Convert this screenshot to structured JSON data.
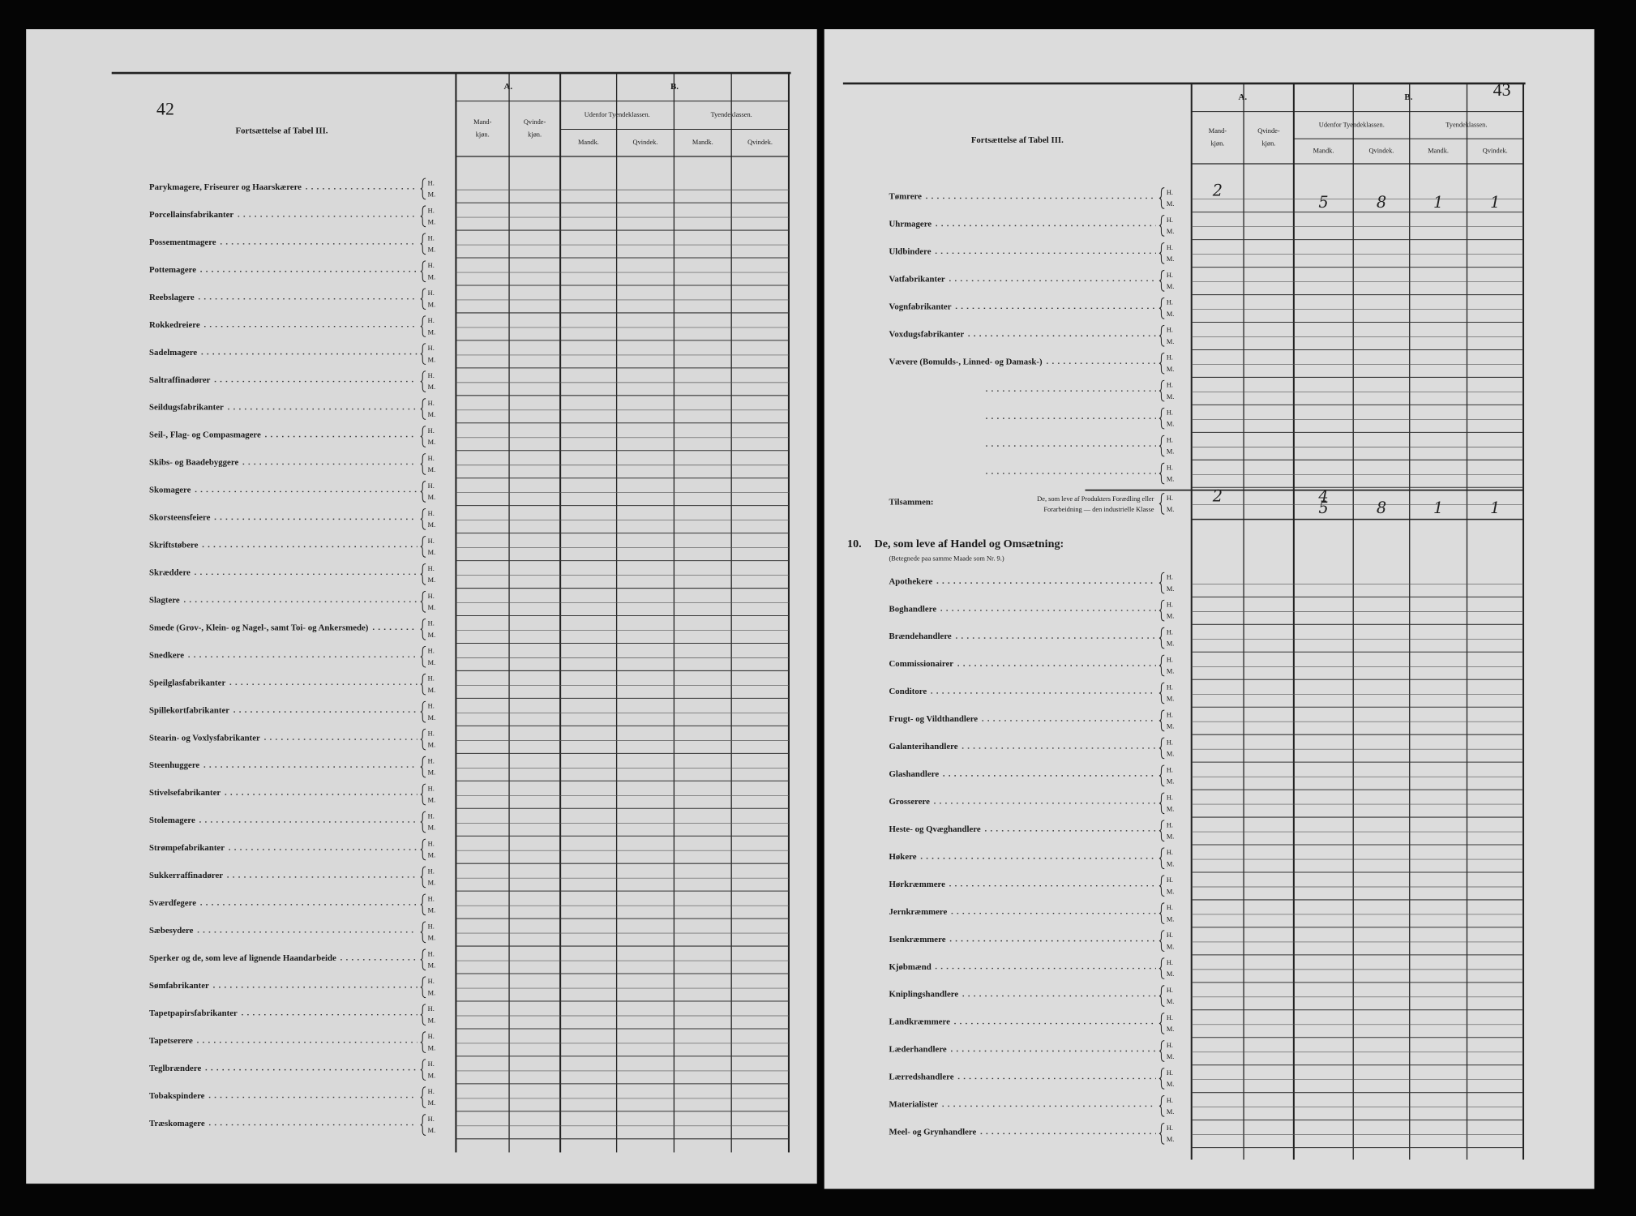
{
  "sex_labels": [
    "H.",
    "M."
  ],
  "header": {
    "A": "A.",
    "B": "B.",
    "male": [
      "Mand-",
      "kjøn."
    ],
    "female": [
      "Qvinde-",
      "kjøn."
    ],
    "outside": "Udenfor Tyendeklassen.",
    "servants": "Tyendeklassen.",
    "male_short": "Mandk.",
    "female_short": "Qvindek."
  },
  "left_page": {
    "page_number": "42",
    "title": "Fortsættelse af Tabel III.",
    "rows": [
      "Parykmagere, Friseurer og Haarskærere",
      "Porcellainsfabrikanter",
      "Possementmagere",
      "Pottemagere",
      "Reebslagere",
      "Rokkedreiere",
      "Sadelmagere",
      "Saltraffinadører",
      "Seildugsfabrikanter",
      "Seil-, Flag- og Compasmagere",
      "Skibs- og Baadebyggere",
      "Skomagere",
      "Skorsteensfeiere",
      "Skriftstøbere",
      "Skræddere",
      "Slagtere",
      "Smede (Grov-, Klein- og Nagel-, samt Toi- og Ankersmede)",
      "Snedkere",
      "Speilglasfabrikanter",
      "Spillekortfabrikanter",
      "Stearin- og Voxlysfabrikanter",
      "Steenhuggere",
      "Stivelsefabrikanter",
      "Stolemagere",
      "Strømpefabrikanter",
      "Sukkerraffinadører",
      "Sværdfegere",
      "Sæbesydere",
      "Sperker og de, som leve af lignende Haandarbeide",
      "Sømfabrikanter",
      "Tapetpapirsfabrikanter",
      "Tapetserere",
      "Teglbrændere",
      "Tobakspindere",
      "Træskomagere"
    ]
  },
  "right_page": {
    "page_number": "43",
    "title": "Fortsættelse af Tabel III.",
    "rows": [
      {
        "label": "Tømrere",
        "H": [
          2,
          null,
          null,
          null,
          null,
          null
        ],
        "M": [
          null,
          null,
          5,
          8,
          1,
          1
        ]
      },
      {
        "label": "Uhrmagere"
      },
      {
        "label": "Uldbindere"
      },
      {
        "label": "Vatfabrikanter"
      },
      {
        "label": "Vognfabrikanter"
      },
      {
        "label": "Voxdugsfabrikanter"
      },
      {
        "label": "Vævere (Bomulds-, Linned- og Damask-)"
      },
      {
        "label": null
      },
      {
        "label": null
      },
      {
        "label": null
      },
      {
        "label": null
      }
    ],
    "total": {
      "label": "Tilsammen:",
      "text": [
        "De, som leve af Produkters Forædling eller",
        "Forarbeidning — den industrielle Klasse"
      ],
      "H": [
        2,
        null,
        4,
        null,
        null,
        null
      ],
      "M": [
        null,
        null,
        5,
        8,
        1,
        1
      ]
    },
    "section": {
      "number": "10.",
      "title": "De, som leve af Handel og Omsætning:",
      "note": "(Betegnede paa samme Maade som Nr. 9.)",
      "rows": [
        "Apothekere",
        "Boghandlere",
        "Brændehandlere",
        "Commissionairer",
        "Conditore",
        "Frugt- og Vildthandlere",
        "Galanterihandlere",
        "Glashandlere",
        "Grosserere",
        "Heste- og Qvæghandlere",
        "Høkere",
        "Hørkræmmere",
        "Jernkræmmere",
        "Isenkræmmere",
        "Kjøbmænd",
        "Kniplingshandlere",
        "Landkræmmere",
        "Læderhandlere",
        "Lærredshandlere",
        "Materialister",
        "Meel- og Grynhandlere"
      ]
    }
  }
}
